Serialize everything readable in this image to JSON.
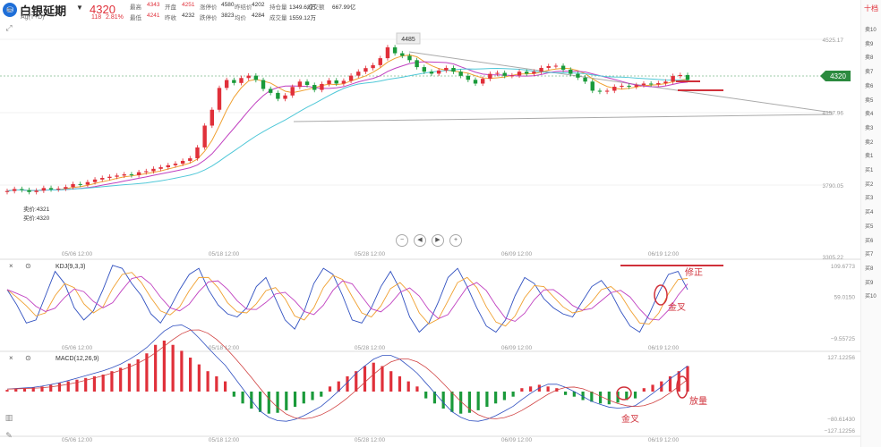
{
  "header": {
    "logo": "⛁",
    "name": "白银延期",
    "code": "Ag(T+D)",
    "price": "4320",
    "change": "118",
    "change_pct": "2.81%",
    "stats": [
      {
        "label": "最高",
        "value": "4343",
        "red": true
      },
      {
        "label": "开盘",
        "value": "4251",
        "red": true
      },
      {
        "label": "涨停价",
        "value": "4580",
        "red": false
      },
      {
        "label": "昨结价",
        "value": "4202",
        "red": false
      },
      {
        "label": "持仓量",
        "value": "1349.62万",
        "red": false
      },
      {
        "label": "成交额",
        "value": "667.99亿",
        "red": false
      },
      {
        "label": "最低",
        "value": "4241",
        "red": true
      },
      {
        "label": "昨收",
        "value": "4232",
        "red": false
      },
      {
        "label": "跌停价",
        "value": "3823",
        "red": false
      },
      {
        "label": "均价",
        "value": "4284",
        "red": false
      },
      {
        "label": "成交量",
        "value": "1559.12万",
        "red": false
      }
    ]
  },
  "right_panel": {
    "header": "十档",
    "rows": [
      "卖10",
      "卖9",
      "卖8",
      "卖7",
      "卖6",
      "卖5",
      "卖4",
      "卖3",
      "卖2",
      "卖1",
      "买1",
      "买2",
      "买3",
      "买4",
      "买5",
      "买6",
      "买7",
      "买8",
      "买9",
      "买10"
    ]
  },
  "main_chart": {
    "y_labels": [
      "4525.17",
      "4157.96",
      "3790.05",
      "3305.22"
    ],
    "high_label": "4485",
    "current_price": "4320",
    "left_info": [
      "卖价:4321",
      "买价:4320"
    ],
    "controls": [
      "−",
      "◀",
      "▶",
      "+"
    ]
  },
  "x_labels": [
    "05/06 12:00",
    "05/18 12:00",
    "05/28 12:00",
    "06/09 12:00",
    "06/19 12:00"
  ],
  "kdj": {
    "title": "KDJ(9,3,3)",
    "y_labels": [
      "109.6773",
      "59.0150",
      "−9.55725"
    ],
    "annotations": [
      "修正",
      "金叉"
    ]
  },
  "macd": {
    "title": "MACD(12,26,9)",
    "y_labels": [
      "127.12256",
      "−80.61430",
      "−127.12256"
    ],
    "annotations": [
      "金叉",
      "放量"
    ]
  },
  "colors": {
    "up": "#e0303a",
    "down": "#1a9a3a",
    "accent": "#2b8a3e"
  },
  "chart_data": [
    {
      "type": "candlestick",
      "title": "白银延期",
      "x_ticks": [
        "05/06 12:00",
        "05/18 12:00",
        "05/28 12:00",
        "06/09 12:00",
        "06/19 12:00"
      ],
      "y_ticks": [
        4525.17,
        4157.96,
        3790.05,
        3305.22
      ],
      "close": [
        3760,
        3770,
        3765,
        3755,
        3762,
        3775,
        3768,
        3772,
        3780,
        3795,
        3792,
        3805,
        3818,
        3826,
        3832,
        3838,
        3844,
        3840,
        3855,
        3860,
        3872,
        3880,
        3890,
        3898,
        3912,
        3925,
        3980,
        4090,
        4170,
        4280,
        4320,
        4305,
        4330,
        4342,
        4320,
        4275,
        4255,
        4225,
        4242,
        4285,
        4312,
        4295,
        4270,
        4300,
        4318,
        4302,
        4316,
        4342,
        4362,
        4380,
        4395,
        4430,
        4485,
        4455,
        4442,
        4420,
        4385,
        4362,
        4352,
        4368,
        4381,
        4362,
        4341,
        4321,
        4302,
        4326,
        4351,
        4356,
        4341,
        4343,
        4362,
        4352,
        4362,
        4381,
        4390,
        4392,
        4372,
        4351,
        4332,
        4312,
        4266,
        4261,
        4266,
        4286,
        4291,
        4286,
        4294,
        4302,
        4298,
        4304,
        4312,
        4340,
        4345,
        4320
      ],
      "current": 4320,
      "high": 4485
    },
    {
      "type": "line",
      "title": "KDJ(9,3,3)",
      "y_ticks": [
        109.6773,
        59.015,
        -9.55725
      ],
      "series": [
        {
          "values": [
            70,
            45,
            15,
            20,
            60,
            100,
            80,
            40,
            20,
            35,
            70,
            110,
            105,
            80,
            60,
            30,
            15,
            40,
            70,
            95,
            105,
            70,
            45,
            30,
            25,
            40,
            75,
            90,
            55,
            20,
            5,
            35,
            80,
            105,
            95,
            60,
            20,
            15,
            40,
            75,
            100,
            70,
            25,
            0,
            15,
            50,
            90,
            105,
            75,
            40,
            10,
            0,
            20,
            60,
            90,
            80,
            55,
            40,
            30,
            25,
            50,
            75,
            85,
            65,
            35,
            10,
            0,
            30,
            65,
            95,
            100,
            70
          ]
        }
      ]
    },
    {
      "type": "bar",
      "title": "MACD(12,26,9)",
      "y_ticks": [
        127.12256,
        -80.6143,
        -127.12256
      ],
      "values": [
        2,
        3,
        4,
        5,
        6,
        8,
        10,
        12,
        14,
        16,
        18,
        20,
        24,
        28,
        33,
        38,
        45,
        55,
        60,
        55,
        48,
        40,
        32,
        24,
        18,
        12,
        -6,
        -14,
        -20,
        -24,
        -26,
        -25,
        -22,
        -18,
        -14,
        -10,
        -6,
        6,
        12,
        18,
        24,
        30,
        34,
        30,
        24,
        18,
        12,
        6,
        -8,
        -14,
        -20,
        -24,
        -26,
        -25,
        -22,
        -18,
        -14,
        -10,
        -6,
        4,
        6,
        8,
        6,
        4,
        -4,
        -6,
        -10,
        -12,
        -14,
        -15,
        -13,
        -10,
        -8,
        4,
        8,
        12,
        18,
        24,
        30
      ]
    }
  ]
}
